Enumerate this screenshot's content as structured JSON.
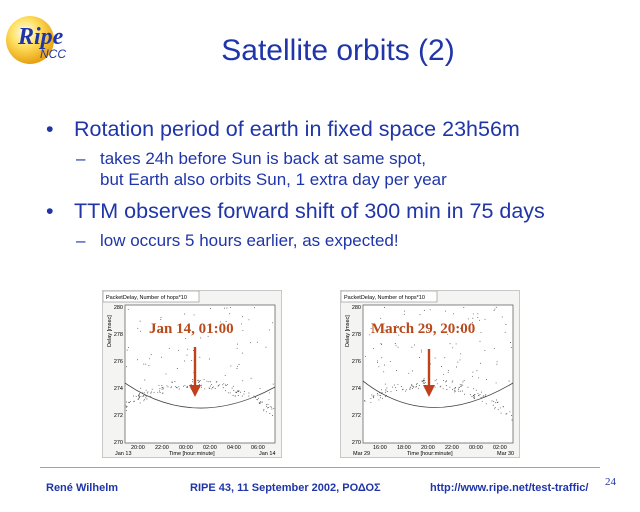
{
  "logo": {
    "text_main": "Ripe",
    "text_sub": "NCC"
  },
  "slide": {
    "title": "Satellite orbits (2)",
    "bullet_glyph": "•",
    "dash_glyph": "–",
    "bullets": [
      {
        "text": "Rotation period of earth in fixed space 23h56m",
        "sub": [
          "takes 24h before Sun is back at same spot,",
          "but Earth also orbits Sun, 1 extra day per year"
        ]
      },
      {
        "text": "TTM observes forward shift of 300 min in 75 days",
        "sub": [
          "low occurs 5 hours earlier, as expected!"
        ]
      }
    ]
  },
  "plots": [
    {
      "header": "PacketDelay, Number of hops*10",
      "annotation": "Jan 14, 01:00",
      "ylabel": "Delay [msec]",
      "xlabel": "Time [hour:minute]",
      "y_ticks": [
        "280",
        "278",
        "276",
        "274",
        "272",
        "270"
      ],
      "x_ticks": [
        "20:00",
        "22:00",
        "00:00",
        "02:00",
        "04:00",
        "06:00"
      ],
      "date_left": "Jan 13",
      "date_right": "Jan 14"
    },
    {
      "header": "PacketDelay, Number of hops*10",
      "annotation": "March 29,  20:00",
      "ylabel": "Delay [msec]",
      "xlabel": "Time [hour:minute]",
      "y_ticks": [
        "280",
        "278",
        "276",
        "274",
        "272",
        "270"
      ],
      "x_ticks": [
        "16:00",
        "18:00",
        "20:00",
        "22:00",
        "00:00",
        "02:00"
      ],
      "date_left": "Mar 29",
      "date_right": "Mar 30"
    }
  ],
  "footer": {
    "author": "René Wilhelm",
    "event": "RIPE 43, 11 September 2002, ΡΟΔΟΣ",
    "url": "http://www.ripe.net/test-traffic/",
    "page": "24"
  },
  "colors": {
    "title": "#1f35a8",
    "arrow": "#c0401c",
    "annotation": "#b94a1c",
    "rule": "#d4a020"
  }
}
